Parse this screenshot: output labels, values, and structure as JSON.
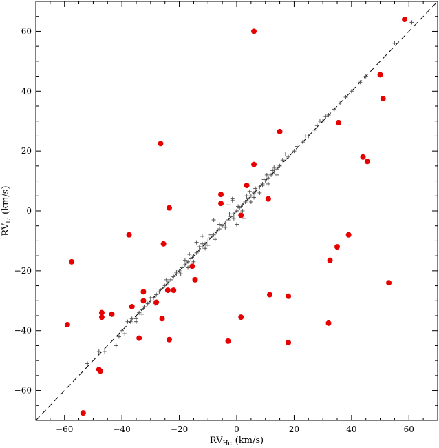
{
  "chart_data": {
    "type": "scatter",
    "title": "",
    "xlabel": "RV",
    "xlabel_sub": "Hα",
    "xlabel_unit": " (km/s)",
    "ylabel": "RV",
    "ylabel_sub": "Li",
    "ylabel_unit": " (km/s)",
    "xlim": [
      -70,
      70
    ],
    "ylim": [
      -70,
      70
    ],
    "x_ticks": [
      -60,
      -40,
      -20,
      0,
      20,
      40,
      60
    ],
    "y_ticks": [
      -60,
      -40,
      -20,
      0,
      20,
      40,
      60
    ],
    "x_tick_labels": [
      "−60",
      "−40",
      "−20",
      "0",
      "20",
      "40",
      "60"
    ],
    "y_tick_labels": [
      "−60",
      "−40",
      "−20",
      "0",
      "20",
      "40",
      "60"
    ],
    "reference_line": {
      "style": "dashed",
      "slope": 1,
      "intercept": 0
    },
    "grid": false,
    "series": [
      {
        "marker": "circle",
        "color": "#e60000",
        "points": [
          [
            58.5,
            64
          ],
          [
            6,
            60
          ],
          [
            50,
            45.5
          ],
          [
            51,
            37.5
          ],
          [
            15,
            26.5
          ],
          [
            35.5,
            29.5
          ],
          [
            -26.5,
            22.5
          ],
          [
            6,
            15.5
          ],
          [
            44,
            18
          ],
          [
            45.5,
            16.5
          ],
          [
            -5.5,
            5.5
          ],
          [
            3.5,
            8.5
          ],
          [
            -5.5,
            2.5
          ],
          [
            11,
            4
          ],
          [
            1.5,
            -1.5
          ],
          [
            -23.5,
            1
          ],
          [
            -37.5,
            -8
          ],
          [
            39,
            -8
          ],
          [
            -25.5,
            -11
          ],
          [
            35,
            -12
          ],
          [
            -57.5,
            -17
          ],
          [
            32.5,
            -16.5
          ],
          [
            -15.5,
            -18.5
          ],
          [
            -14.5,
            -23
          ],
          [
            53,
            -24
          ],
          [
            -24,
            -26.5
          ],
          [
            -22,
            -26.5
          ],
          [
            -32.5,
            -27
          ],
          [
            -32.5,
            -30
          ],
          [
            -28,
            -30.5
          ],
          [
            -36.5,
            -32
          ],
          [
            11.5,
            -28
          ],
          [
            18,
            -28.5
          ],
          [
            -47,
            -34
          ],
          [
            -43.5,
            -34.5
          ],
          [
            -47,
            -35.5
          ],
          [
            -26,
            -36
          ],
          [
            1.5,
            -35.5
          ],
          [
            -59,
            -38
          ],
          [
            32,
            -37.5
          ],
          [
            -34,
            -42.5
          ],
          [
            -23.5,
            -43
          ],
          [
            -3,
            -43.5
          ],
          [
            18,
            -44
          ],
          [
            -48,
            -53
          ],
          [
            -47.5,
            -53.5
          ],
          [
            -53.5,
            -67.5
          ]
        ]
      },
      {
        "marker": "plus",
        "color": "#555555",
        "points": [
          [
            -52,
            -51
          ],
          [
            -48,
            -47
          ],
          [
            -46,
            -47
          ],
          [
            -42,
            -45
          ],
          [
            -41,
            -42
          ],
          [
            -40,
            -40
          ],
          [
            -39,
            -41
          ],
          [
            -38,
            -37
          ],
          [
            -37,
            -37
          ],
          [
            -35,
            -36
          ],
          [
            -34,
            -34
          ],
          [
            -33,
            -33
          ],
          [
            -32,
            -32
          ],
          [
            -31,
            -31
          ],
          [
            -30,
            -30
          ],
          [
            -29,
            -29
          ],
          [
            -28,
            -28
          ],
          [
            -27,
            -27
          ],
          [
            -26,
            -26
          ],
          [
            -25,
            -25
          ],
          [
            -24,
            -24
          ],
          [
            -23,
            -23
          ],
          [
            -22,
            -22
          ],
          [
            -21,
            -21
          ],
          [
            -20,
            -20
          ],
          [
            -19,
            -19
          ],
          [
            -18,
            -18
          ],
          [
            -17,
            -17
          ],
          [
            -16,
            -16
          ],
          [
            -15,
            -15
          ],
          [
            -14,
            -14
          ],
          [
            -13,
            -13
          ],
          [
            -12,
            -12
          ],
          [
            -11,
            -11
          ],
          [
            -10,
            -10
          ],
          [
            -9,
            -9
          ],
          [
            -8,
            -8
          ],
          [
            -7,
            -7
          ],
          [
            -6,
            -6
          ],
          [
            -5,
            -5
          ],
          [
            -4,
            -4
          ],
          [
            -3,
            -3
          ],
          [
            -2,
            -2
          ],
          [
            -1,
            -1
          ],
          [
            0,
            0
          ],
          [
            1,
            1
          ],
          [
            2,
            2
          ],
          [
            3,
            3
          ],
          [
            4,
            4
          ],
          [
            5,
            5
          ],
          [
            6,
            6
          ],
          [
            7,
            7
          ],
          [
            8,
            8
          ],
          [
            9,
            9
          ],
          [
            10,
            10
          ],
          [
            11,
            11
          ],
          [
            12,
            12
          ],
          [
            13,
            13
          ],
          [
            14,
            14
          ],
          [
            15,
            15
          ],
          [
            -24.5,
            -23
          ],
          [
            -21,
            -20.5
          ],
          [
            -19.5,
            -21
          ],
          [
            -18,
            -16.5
          ],
          [
            -17,
            -19
          ],
          [
            -13,
            -12
          ],
          [
            -11,
            -12.5
          ],
          [
            -14,
            -10.5
          ],
          [
            -9,
            -8
          ],
          [
            -7.5,
            -9.5
          ],
          [
            -6,
            -4.5
          ],
          [
            -4,
            -5.5
          ],
          [
            -2.5,
            -1
          ],
          [
            -1,
            -2.5
          ],
          [
            0.5,
            1.5
          ],
          [
            2,
            0
          ],
          [
            3.5,
            5
          ],
          [
            5,
            3
          ],
          [
            6.5,
            7.5
          ],
          [
            8,
            6
          ],
          [
            9.5,
            10.5
          ],
          [
            11,
            9
          ],
          [
            12.5,
            13.5
          ],
          [
            14,
            12
          ],
          [
            16,
            17
          ],
          [
            18,
            18
          ],
          [
            20,
            20
          ],
          [
            23,
            23
          ],
          [
            25,
            25
          ],
          [
            27,
            27
          ],
          [
            29,
            30
          ],
          [
            30,
            30
          ],
          [
            32,
            32
          ],
          [
            34,
            34
          ],
          [
            36,
            36
          ],
          [
            38,
            38
          ],
          [
            40,
            40
          ],
          [
            43,
            43
          ],
          [
            45,
            45
          ],
          [
            -3,
            2
          ],
          [
            -1.5,
            3.5
          ],
          [
            0,
            -4.5
          ],
          [
            -30,
            -29
          ],
          [
            -28.5,
            -31
          ],
          [
            -33,
            -34.5
          ],
          [
            -35,
            -37
          ],
          [
            -36.5,
            -36
          ],
          [
            -10,
            -11.5
          ],
          [
            -12,
            -8.5
          ],
          [
            -15,
            -17
          ],
          [
            -16.5,
            -14.5
          ],
          [
            -8,
            -3
          ],
          [
            -1.5,
            4
          ],
          [
            2.5,
            -2.5
          ],
          [
            4.5,
            6.5
          ],
          [
            6,
            4.5
          ],
          [
            9,
            8.5
          ],
          [
            10.5,
            12
          ],
          [
            13,
            14.5
          ],
          [
            17,
            19
          ],
          [
            21,
            21.5
          ],
          [
            24,
            25
          ],
          [
            28,
            28.5
          ],
          [
            31,
            31.5
          ],
          [
            55,
            56
          ],
          [
            61,
            63
          ],
          [
            -12,
            -11
          ]
        ]
      }
    ]
  }
}
